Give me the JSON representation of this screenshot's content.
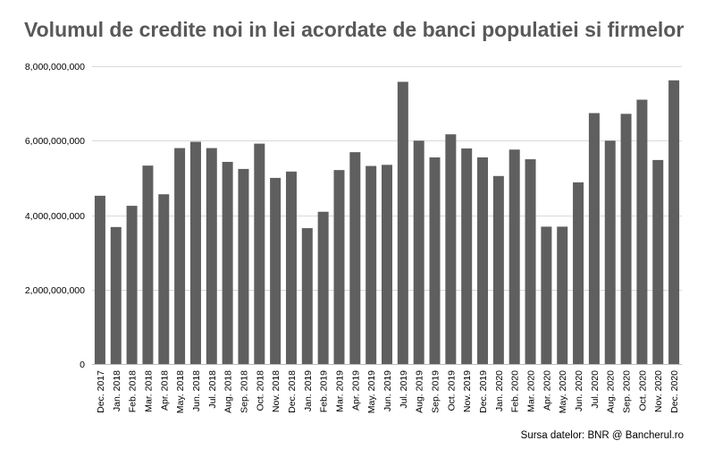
{
  "chart_data": {
    "type": "bar",
    "title": "Volumul de credite noi in lei acordate de banci populatiei si firmelor",
    "xlabel": "",
    "ylabel": "",
    "ylim": [
      0,
      8000000000
    ],
    "yticks": [
      {
        "value": 0,
        "label": "0"
      },
      {
        "value": 2000000000,
        "label": "2,000,000,000"
      },
      {
        "value": 4000000000,
        "label": "4,000,000,000"
      },
      {
        "value": 6000000000,
        "label": "6,000,000,000"
      },
      {
        "value": 8000000000,
        "label": "8,000,000,000"
      }
    ],
    "grid": true,
    "legend": "none",
    "bar_color": "#5f5f5f",
    "categories": [
      "Dec. 2017",
      "Jan. 2018",
      "Feb. 2018",
      "Mar. 2018",
      "Apr. 2018",
      "May. 2018",
      "Jun. 2018",
      "Jul. 2018",
      "Aug. 2018",
      "Sep. 2018",
      "Oct. 2018",
      "Nov. 2018",
      "Dec. 2018",
      "Jan. 2019",
      "Feb. 2019",
      "Mar. 2019",
      "Apr. 2019",
      "May. 2019",
      "Jun. 2019",
      "Jul. 2019",
      "Aug. 2019",
      "Sep. 2019",
      "Oct. 2019",
      "Nov. 2019",
      "Dec. 2019",
      "Jan. 2020",
      "Feb. 2020",
      "Mar. 2020",
      "Apr. 2020",
      "May. 2020",
      "Jun. 2020",
      "Jul. 2020",
      "Aug. 2020",
      "Sep. 2020",
      "Oct. 2020",
      "Nov. 2020",
      "Dec. 2020"
    ],
    "values": [
      4520000000,
      3680000000,
      4250000000,
      5330000000,
      4560000000,
      5800000000,
      5970000000,
      5800000000,
      5430000000,
      5240000000,
      5920000000,
      5000000000,
      5170000000,
      3650000000,
      4090000000,
      5210000000,
      5690000000,
      5320000000,
      5350000000,
      7580000000,
      6000000000,
      5550000000,
      6170000000,
      5790000000,
      5550000000,
      5050000000,
      5760000000,
      5500000000,
      3690000000,
      3690000000,
      4880000000,
      6740000000,
      6000000000,
      6720000000,
      7100000000,
      5480000000,
      7620000000
    ]
  },
  "source": "Sursa datelor: BNR @ Bancherul.ro"
}
